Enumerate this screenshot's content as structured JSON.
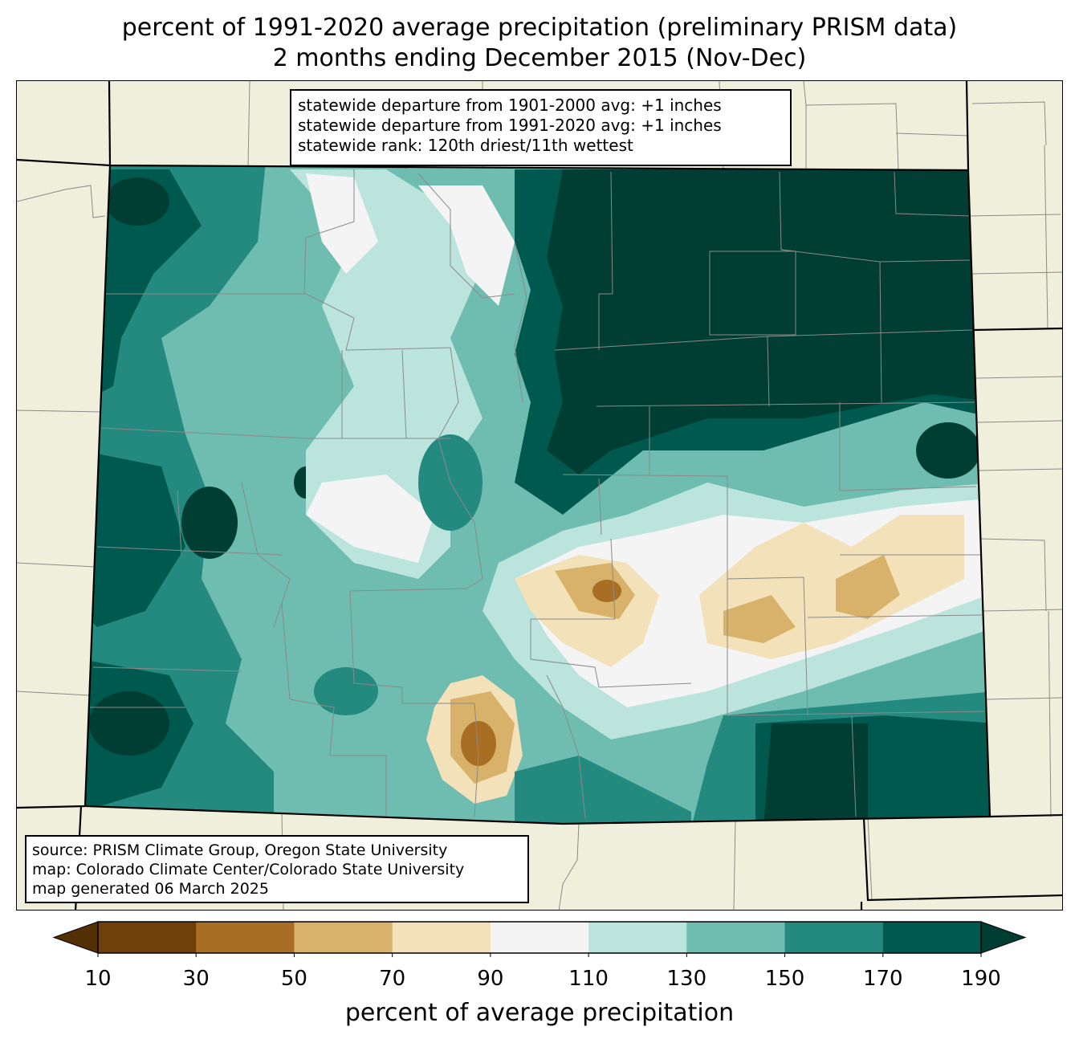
{
  "title": {
    "line1": "percent of 1991-2020 average precipitation (preliminary PRISM data)",
    "line2": "2 months ending December 2015 (Nov-Dec)"
  },
  "stats": {
    "line1": "statewide departure from 1901-2000 avg: +1 inches",
    "line2": "statewide departure from 1991-2020 avg: +1 inches",
    "line3": "statewide rank: 120th driest/11th wettest"
  },
  "source": {
    "line1": "source: PRISM Climate Group, Oregon State University",
    "line2": "map: Colorado Climate Center/Colorado State University",
    "line3": "map generated 06 March 2025"
  },
  "colorbar": {
    "label": "percent of average precipitation",
    "ticks": [
      "10",
      "30",
      "50",
      "70",
      "90",
      "110",
      "130",
      "150",
      "170",
      "190"
    ],
    "bins": [
      {
        "range": "<10",
        "color": "#543005"
      },
      {
        "range": "10-30",
        "color": "#70400a"
      },
      {
        "range": "30-50",
        "color": "#a86e23"
      },
      {
        "range": "50-70",
        "color": "#d8b26a"
      },
      {
        "range": "70-90",
        "color": "#f3e1b9"
      },
      {
        "range": "90-110",
        "color": "#f3f4f3"
      },
      {
        "range": "110-130",
        "color": "#bbe4dd"
      },
      {
        "range": "130-150",
        "color": "#6fbdb0"
      },
      {
        "range": "150-170",
        "color": "#248a7f"
      },
      {
        "range": "170-190",
        "color": "#00594f"
      },
      {
        "range": ">190",
        "color": "#003d33"
      }
    ]
  },
  "colors": {
    "land": "#f0efdb",
    "state_border": "#000000",
    "county_border": "#808080"
  }
}
